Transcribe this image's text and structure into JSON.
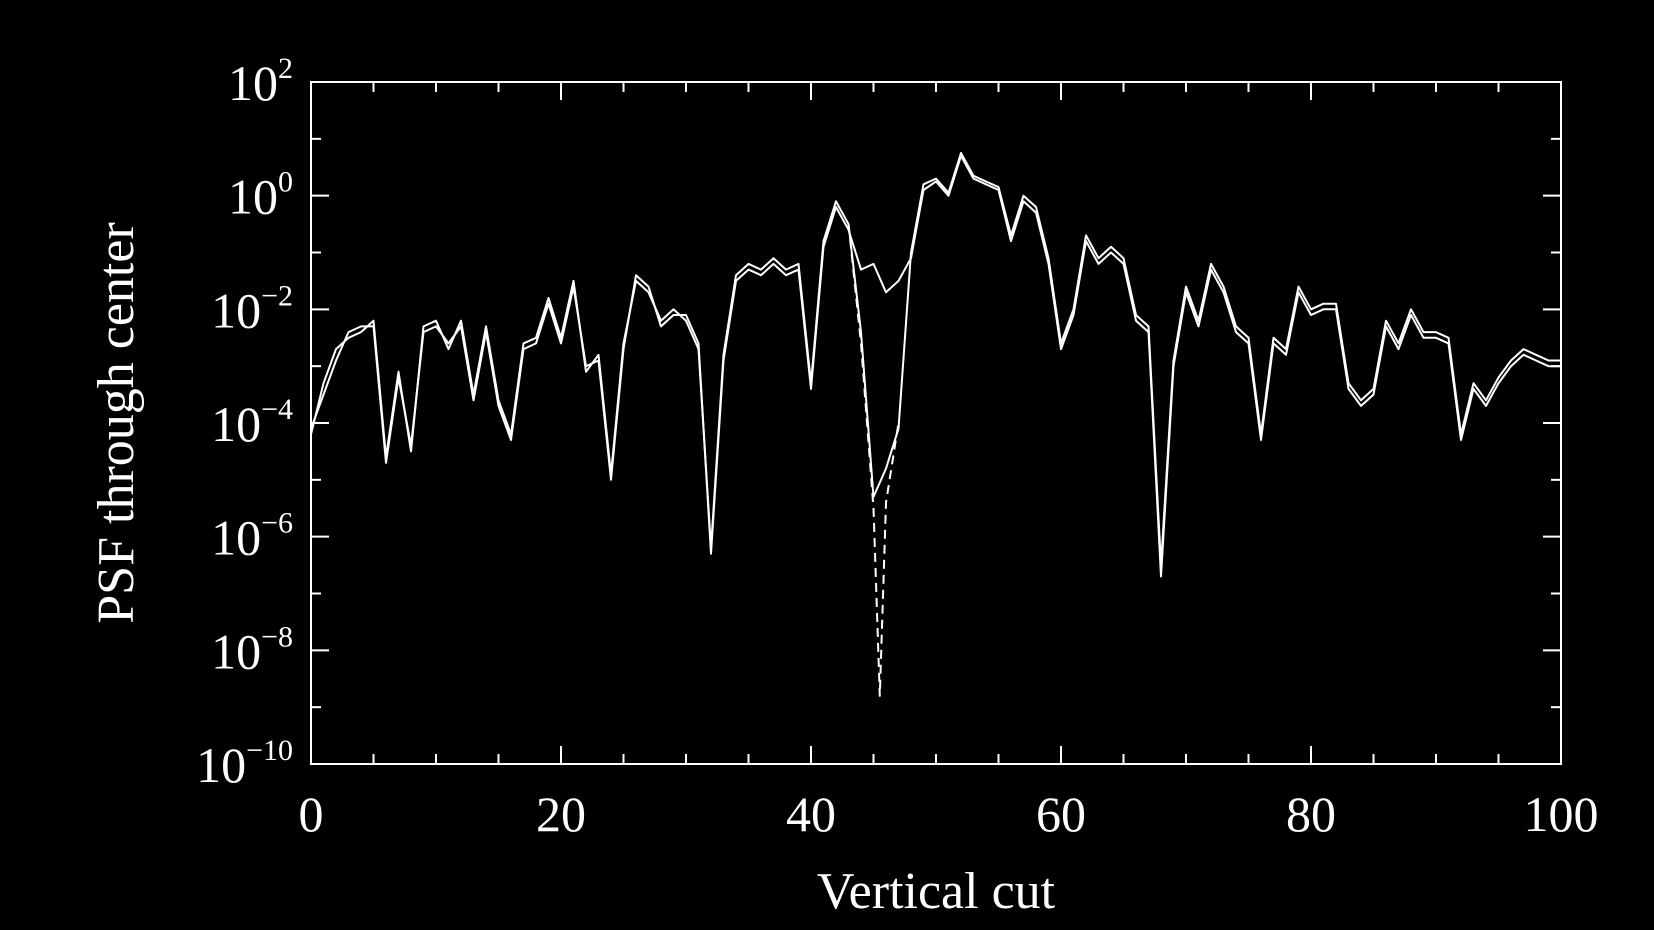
{
  "chart_data": {
    "type": "line",
    "title": "",
    "xlabel": "Vertical cut",
    "ylabel": "PSF through center",
    "xlim": [
      0,
      100
    ],
    "ylim_log10": [
      -10,
      2
    ],
    "yscale": "log",
    "x_ticks": [
      0,
      20,
      40,
      60,
      80,
      100
    ],
    "y_tick_exponents": [
      2,
      0,
      -2,
      -4,
      -6,
      -8,
      -10
    ],
    "y_tick_exponent_labels": [
      "2",
      "0",
      "−2",
      "−4",
      "−6",
      "−8",
      "−10"
    ],
    "y_tick_base": "10",
    "grid": false,
    "legend": "none",
    "colors": {
      "background": "#000000",
      "axes": "#ffffff",
      "series": "#ffffff"
    },
    "series": [
      {
        "style": "solid",
        "x": [
          0,
          1,
          2,
          3,
          4,
          5,
          6,
          7,
          8,
          9,
          10,
          11,
          12,
          13,
          14,
          15,
          16,
          17,
          18,
          19,
          20,
          21,
          22,
          23,
          24,
          25,
          26,
          27,
          28,
          29,
          30,
          31,
          32,
          33,
          34,
          35,
          36,
          37,
          38,
          39,
          40,
          41,
          42,
          43,
          44,
          45,
          46,
          47,
          48,
          49,
          50,
          51,
          52,
          53,
          54,
          55,
          56,
          57,
          58,
          59,
          60,
          61,
          62,
          63,
          64,
          65,
          66,
          67,
          68,
          69,
          70,
          71,
          72,
          73,
          74,
          75,
          76,
          77,
          78,
          79,
          80,
          81,
          82,
          83,
          84,
          85,
          86,
          87,
          88,
          89,
          90,
          91,
          92,
          93,
          94,
          95,
          96,
          97,
          98,
          99,
          100
        ],
        "y": [
          -4.1,
          -3.5,
          -2.9,
          -2.4,
          -2.3,
          -2.3,
          -4.7,
          -3.2,
          -4.4,
          -2.4,
          -2.3,
          -2.6,
          -2.3,
          -3.6,
          -2.4,
          -3.7,
          -4.3,
          -2.7,
          -2.6,
          -1.9,
          -2.6,
          -1.6,
          -3.0,
          -2.9,
          -5.0,
          -2.7,
          -1.4,
          -1.6,
          -2.3,
          -2.1,
          -2.1,
          -2.6,
          -6.3,
          -2.9,
          -1.5,
          -1.3,
          -1.4,
          -1.2,
          -1.4,
          -1.3,
          -3.4,
          -0.9,
          -0.2,
          -0.6,
          -1.3,
          -1.2,
          -1.7,
          -1.5,
          -1.1,
          0.1,
          0.25,
          0.0,
          0.7,
          0.3,
          0.2,
          0.1,
          -0.8,
          -0.1,
          -0.3,
          -1.2,
          -2.7,
          -2.1,
          -0.8,
          -1.2,
          -1.0,
          -1.2,
          -2.2,
          -2.4,
          -6.7,
          -3.0,
          -1.7,
          -2.3,
          -1.3,
          -1.7,
          -2.4,
          -2.6,
          -4.3,
          -2.6,
          -2.8,
          -1.7,
          -2.1,
          -2.0,
          -2.0,
          -3.4,
          -3.7,
          -3.5,
          -2.3,
          -2.7,
          -2.1,
          -2.5,
          -2.5,
          -2.6,
          -4.3,
          -3.4,
          -3.7,
          -3.3,
          -3.0,
          -2.8,
          -2.9,
          -3.0,
          -3.0
        ]
      },
      {
        "style": "solid",
        "x": [
          0,
          1,
          2,
          3,
          4,
          5,
          6,
          7,
          8,
          9,
          10,
          11,
          12,
          13,
          14,
          15,
          16,
          17,
          18,
          19,
          20,
          21,
          22,
          23,
          24,
          25,
          26,
          27,
          28,
          29,
          30,
          31,
          32,
          33,
          34,
          35,
          36,
          37,
          38,
          39,
          40,
          41,
          42,
          43,
          44,
          45,
          46,
          47,
          48,
          49,
          50,
          51,
          52,
          53,
          54,
          55,
          56,
          57,
          58,
          59,
          60,
          61,
          62,
          63,
          64,
          65,
          66,
          67,
          68,
          69,
          70,
          71,
          72,
          73,
          74,
          75,
          76,
          77,
          78,
          79,
          80,
          81,
          82,
          83,
          84,
          85,
          86,
          87,
          88,
          89,
          90,
          91,
          92,
          93,
          94,
          95,
          96,
          97,
          98,
          99,
          100
        ],
        "y": [
          -4.2,
          -3.3,
          -2.7,
          -2.5,
          -2.4,
          -2.2,
          -4.6,
          -3.1,
          -4.5,
          -2.3,
          -2.2,
          -2.7,
          -2.2,
          -3.5,
          -2.3,
          -3.6,
          -4.2,
          -2.6,
          -2.5,
          -1.8,
          -2.5,
          -1.5,
          -3.1,
          -2.8,
          -4.9,
          -2.6,
          -1.5,
          -1.7,
          -2.2,
          -2.0,
          -2.2,
          -2.7,
          -6.2,
          -2.8,
          -1.4,
          -1.2,
          -1.3,
          -1.1,
          -1.3,
          -1.2,
          -3.3,
          -0.8,
          -0.1,
          -0.5,
          -2.4,
          -5.3,
          -4.8,
          -4.1,
          -1.0,
          0.2,
          0.3,
          0.05,
          0.75,
          0.35,
          0.25,
          0.15,
          -0.7,
          0.0,
          -0.2,
          -1.1,
          -2.6,
          -2.0,
          -0.7,
          -1.1,
          -0.9,
          -1.1,
          -2.1,
          -2.3,
          -6.5,
          -2.9,
          -1.6,
          -2.2,
          -1.2,
          -1.6,
          -2.3,
          -2.5,
          -4.2,
          -2.5,
          -2.7,
          -1.6,
          -2.0,
          -1.9,
          -1.9,
          -3.3,
          -3.6,
          -3.4,
          -2.2,
          -2.6,
          -2.0,
          -2.4,
          -2.4,
          -2.5,
          -4.2,
          -3.3,
          -3.6,
          -3.2,
          -2.9,
          -2.7,
          -2.8,
          -2.9,
          -2.9
        ]
      },
      {
        "style": "dashed",
        "x": [
          43,
          44,
          45,
          45.5,
          46,
          47
        ],
        "y": [
          -0.5,
          -2.6,
          -5.5,
          -8.8,
          -5.4,
          -4.0
        ]
      }
    ]
  }
}
